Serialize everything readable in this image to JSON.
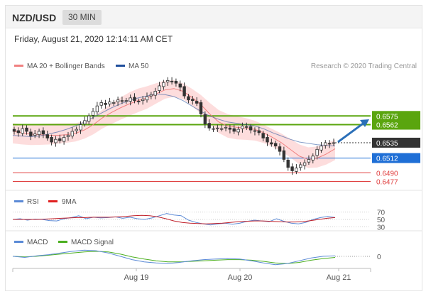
{
  "header": {
    "pair": "NZD/USD",
    "timeframe": "30 MIN",
    "datetime": "Friday, August 21, 2020 12:14:11 AM CET"
  },
  "legend_main": [
    {
      "label": "MA 20 + Bollinger Bands",
      "color": "#f08080"
    },
    {
      "label": "MA 50",
      "color": "#1f4e9c"
    }
  ],
  "copyright": "Research © 2020 Trading Central",
  "legend_rsi": [
    {
      "label": "RSI",
      "color": "#5b8ad6"
    },
    {
      "label": "9MA",
      "color": "#e02020"
    }
  ],
  "legend_macd": [
    {
      "label": "MACD",
      "color": "#5b8ad6"
    },
    {
      "label": "MACD Signal",
      "color": "#4caf20"
    }
  ],
  "colors": {
    "resistance": "#5aa50e",
    "current": "#333333",
    "pivot": "#1f6fd6",
    "support": "#e04040",
    "candle_up": "#ffffff",
    "candle_down": "#333333",
    "band_fill": "#fdd5d5",
    "arrow": "#2a6fb8"
  },
  "chart_data": {
    "type": "candlestick",
    "x_ticks": [
      "Aug 19",
      "Aug 20",
      "Aug 21"
    ],
    "y_range": [
      0.6468,
      0.6638
    ],
    "levels": [
      {
        "label": "0.6575",
        "value": 0.6575,
        "kind": "resistance"
      },
      {
        "label": "0.6562",
        "value": 0.6562,
        "kind": "resistance"
      },
      {
        "label": "0.6535",
        "value": 0.6535,
        "kind": "current"
      },
      {
        "label": "0.6512",
        "value": 0.6512,
        "kind": "pivot"
      },
      {
        "label": "0.6490",
        "value": 0.649,
        "kind": "support"
      },
      {
        "label": "0.6477",
        "value": 0.6477,
        "kind": "support"
      }
    ],
    "close_path": [
      0.6552,
      0.655,
      0.6556,
      0.6552,
      0.6545,
      0.6548,
      0.6552,
      0.6548,
      0.6542,
      0.6536,
      0.654,
      0.6538,
      0.6543,
      0.6546,
      0.6552,
      0.6555,
      0.6562,
      0.6568,
      0.6575,
      0.6582,
      0.659,
      0.6595,
      0.6592,
      0.6596,
      0.6595,
      0.6599,
      0.6597,
      0.6598,
      0.6602,
      0.6598,
      0.6597,
      0.66,
      0.6604,
      0.6607,
      0.6612,
      0.662,
      0.6625,
      0.6628,
      0.6626,
      0.6624,
      0.6618,
      0.6605,
      0.6599,
      0.6598,
      0.6594,
      0.6578,
      0.6563,
      0.6557,
      0.6556,
      0.6557,
      0.6556,
      0.6558,
      0.6555,
      0.6552,
      0.6555,
      0.656,
      0.6558,
      0.6554,
      0.6552,
      0.655,
      0.6542,
      0.6536,
      0.6533,
      0.653,
      0.6522,
      0.651,
      0.6498,
      0.6493,
      0.6497,
      0.6502,
      0.6505,
      0.651,
      0.6515,
      0.6525,
      0.653,
      0.6535,
      0.6533,
      0.6535
    ],
    "ma20_path": [
      0.6552,
      0.655,
      0.6548,
      0.6547,
      0.6546,
      0.6546,
      0.6547,
      0.6549,
      0.6554,
      0.6562,
      0.6572,
      0.658,
      0.6587,
      0.6593,
      0.6598,
      0.6602,
      0.6608,
      0.6614,
      0.6616,
      0.6612,
      0.6603,
      0.6592,
      0.6578,
      0.6566,
      0.656,
      0.6558,
      0.6557,
      0.6555,
      0.655,
      0.6543,
      0.6535,
      0.6525,
      0.6515,
      0.651,
      0.6512,
      0.6518,
      0.6526
    ],
    "ma50_path": [
      0.6546,
      0.6545,
      0.6544,
      0.6545,
      0.6548,
      0.6551,
      0.6555,
      0.656,
      0.6566,
      0.6573,
      0.658,
      0.6587,
      0.6593,
      0.6598,
      0.6602,
      0.6605,
      0.6608,
      0.6607,
      0.6604,
      0.6598,
      0.659,
      0.6582,
      0.6575,
      0.657,
      0.6566,
      0.6564,
      0.6562,
      0.656,
      0.6556,
      0.655,
      0.6545,
      0.654,
      0.6536,
      0.6534,
      0.6532,
      0.6531,
      0.653
    ],
    "rsi": {
      "ticks": [
        70,
        50,
        30
      ],
      "range": [
        25,
        75
      ],
      "rsi_path": [
        50,
        52,
        48,
        51,
        50,
        47,
        46,
        52,
        55,
        60,
        52,
        56,
        54,
        55,
        57,
        53,
        56,
        52,
        50,
        54,
        60,
        66,
        62,
        60,
        48,
        42,
        38,
        35,
        38,
        40,
        37,
        40,
        45,
        48,
        46,
        44,
        52,
        45,
        40,
        38,
        42,
        50,
        55,
        58,
        55
      ],
      "ma_path": [
        50,
        50,
        50,
        50,
        51,
        52,
        53,
        54,
        55,
        55,
        56,
        56,
        56,
        57,
        58,
        60,
        61,
        60,
        57,
        52,
        46,
        42,
        40,
        39,
        38,
        39,
        40,
        42,
        44,
        45,
        46,
        46,
        45,
        44,
        43,
        43,
        44,
        47,
        50,
        53,
        55
      ]
    },
    "macd": {
      "ticks": [
        0
      ],
      "range": [
        -0.0018,
        0.0014
      ],
      "macd_path": [
        0.0,
        -0.0002,
        0.0001,
        0.0003,
        0.0006,
        0.0009,
        0.0011,
        0.001,
        0.0006,
        0.0,
        -0.0006,
        -0.001,
        -0.0012,
        -0.0013,
        -0.0011,
        -0.0008,
        -0.0006,
        -0.0005,
        -0.0004,
        -0.0005,
        -0.0008,
        -0.0012,
        -0.0015,
        -0.0013,
        -0.0008,
        -0.0003,
        0.0,
        0.0001
      ],
      "signal_path": [
        0.0,
        -0.0001,
        0.0,
        0.0002,
        0.0004,
        0.0006,
        0.0008,
        0.0009,
        0.0008,
        0.0004,
        -0.0001,
        -0.0005,
        -0.0008,
        -0.001,
        -0.001,
        -0.0009,
        -0.0008,
        -0.0007,
        -0.0006,
        -0.0006,
        -0.0007,
        -0.0009,
        -0.0012,
        -0.0013,
        -0.0011,
        -0.0007,
        -0.0004,
        -0.0002
      ]
    }
  }
}
